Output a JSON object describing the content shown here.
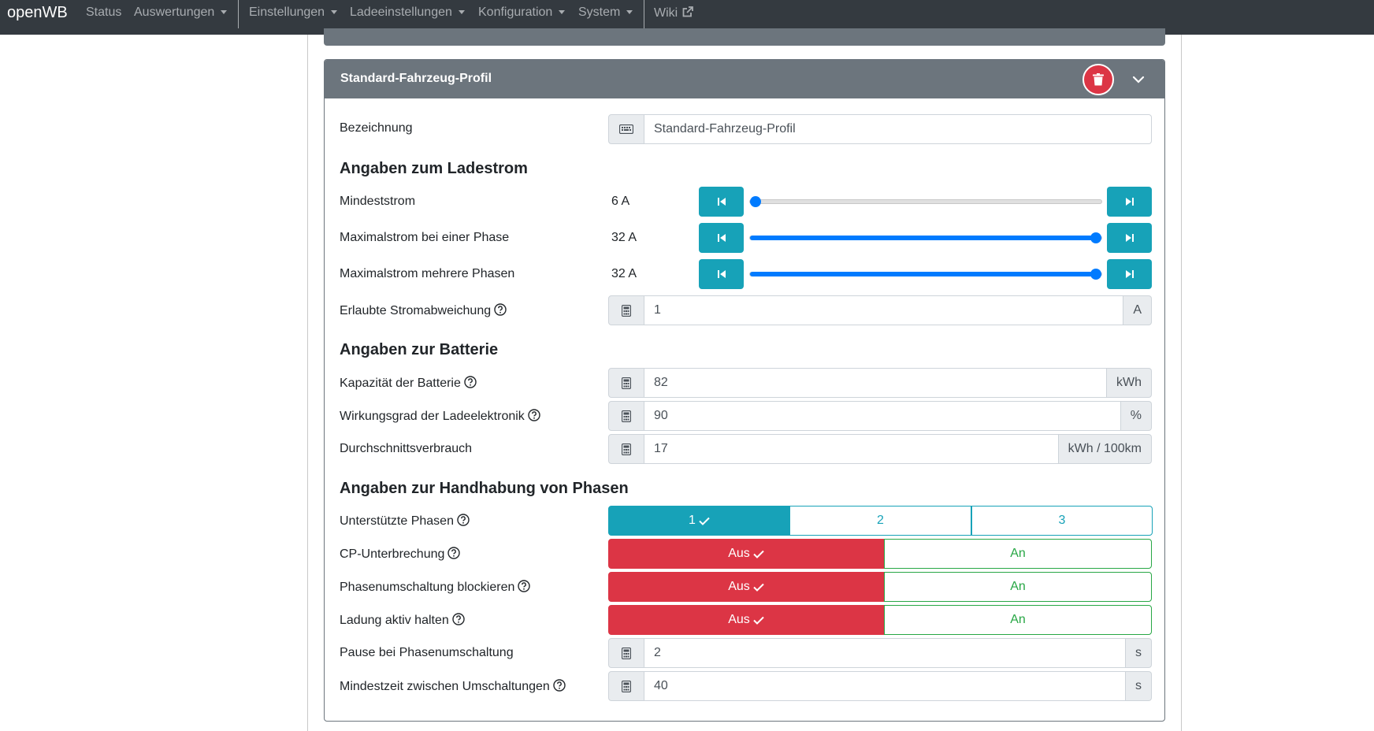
{
  "navbar": {
    "brand": "openWB",
    "items": [
      {
        "label": "Status"
      },
      {
        "label": "Auswertungen"
      },
      {
        "label": "Einstellungen"
      },
      {
        "label": "Ladeeinstellungen"
      },
      {
        "label": "Konfiguration"
      },
      {
        "label": "System"
      },
      {
        "label": "Wiki"
      }
    ]
  },
  "card": {
    "title": "Standard-Fahrzeug-Profil"
  },
  "fields": {
    "bezeichnung": {
      "label": "Bezeichnung",
      "value": "Standard-Fahrzeug-Profil"
    },
    "ladestrom_section": "Angaben zum Ladestrom",
    "mindeststrom": {
      "label": "Mindeststrom",
      "value": "6 A",
      "fraction": 0.0
    },
    "max_eine_phase": {
      "label": "Maximalstrom bei einer Phase",
      "value": "32 A",
      "fraction": 1.0
    },
    "max_mehrere_phasen": {
      "label": "Maximalstrom mehrere Phasen",
      "value": "32 A",
      "fraction": 1.0
    },
    "stromabweichung": {
      "label": "Erlaubte Stromabweichung",
      "value": "1",
      "unit": "A"
    },
    "batterie_section": "Angaben zur Batterie",
    "kapazitaet": {
      "label": "Kapazität der Batterie",
      "value": "82",
      "unit": "kWh"
    },
    "wirkungsgrad": {
      "label": "Wirkungsgrad der Ladeelektronik",
      "value": "90",
      "unit": "%"
    },
    "verbrauch": {
      "label": "Durchschnittsverbrauch",
      "value": "17",
      "unit": "kWh / 100km"
    },
    "phasen_section": "Angaben zur Handhabung von Phasen",
    "phasen": {
      "label": "Unterstützte Phasen",
      "options": [
        "1",
        "2",
        "3"
      ],
      "selected": "1"
    },
    "cp_unterbrechung": {
      "label": "CP-Unterbrechung",
      "off": "Aus",
      "on": "An",
      "selected": "Aus"
    },
    "phasenumschaltung_block": {
      "label": "Phasenumschaltung blockieren",
      "off": "Aus",
      "on": "An",
      "selected": "Aus"
    },
    "ladung_aktiv": {
      "label": "Ladung aktiv halten",
      "off": "Aus",
      "on": "An",
      "selected": "Aus"
    },
    "pause": {
      "label": "Pause bei Phasenumschaltung",
      "value": "2",
      "unit": "s"
    },
    "mindestzeit": {
      "label": "Mindestzeit zwischen Umschaltungen",
      "value": "40",
      "unit": "s"
    }
  },
  "colors": {
    "navbar": "#343a40",
    "header": "#6c757d",
    "info": "#17a2b8",
    "danger": "#dc3545",
    "success": "#28a745",
    "slider": "#007bff"
  },
  "icons": {
    "keyboard": "keyboard-icon",
    "calculator": "calculator-icon",
    "help": "question-circle-icon",
    "trash": "trash-icon",
    "chevron": "chevron-down-icon",
    "step_back": "step-backward-icon",
    "step_forward": "step-forward-icon",
    "check": "check-icon",
    "external": "external-link-icon"
  }
}
